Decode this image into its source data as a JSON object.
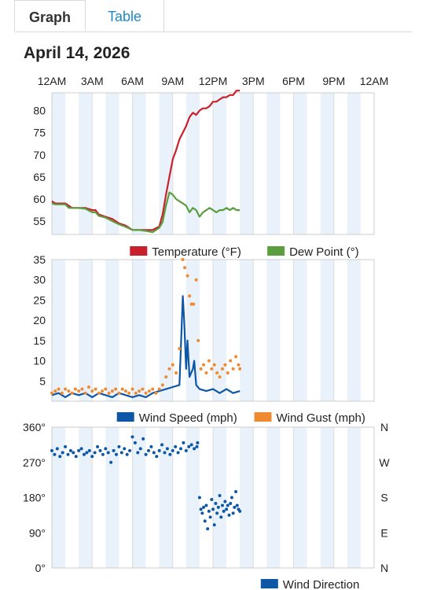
{
  "tabs": {
    "graph": "Graph",
    "table": "Table"
  },
  "date": "April 14, 2026",
  "time_axis": {
    "labels": [
      "12AM",
      "3AM",
      "6AM",
      "9AM",
      "12PM",
      "3PM",
      "6PM",
      "9PM",
      "12AM"
    ],
    "hour_range": [
      0,
      24
    ]
  },
  "colors": {
    "temperature": "#c8202c",
    "dew_point": "#5b9e3e",
    "wind_speed": "#0d57a6",
    "wind_gust": "#f08a30",
    "wind_direction": "#0d57a6",
    "band": "#e9f2fb",
    "grid": "#dddddd"
  },
  "chart_data": [
    {
      "type": "line",
      "ylim": [
        52,
        84
      ],
      "yticks": [
        55,
        60,
        65,
        70,
        75,
        80
      ],
      "series": [
        {
          "name": "Temperature (°F)",
          "key": "temperature",
          "x": [
            0,
            0.25,
            0.5,
            1,
            1.25,
            1.5,
            2,
            2.5,
            3,
            3.25,
            3.5,
            4,
            4.5,
            5,
            5.5,
            6,
            6.5,
            7,
            7.5,
            8,
            8.25,
            8.5,
            8.75,
            9,
            9.25,
            9.5,
            9.75,
            10,
            10.25,
            10.5,
            10.75,
            11,
            11.25,
            11.5,
            11.75,
            12,
            12.25,
            12.5,
            12.75,
            13,
            13.25,
            13.5,
            13.75,
            14
          ],
          "values": [
            59.5,
            59,
            59,
            59,
            58.5,
            58,
            58,
            58,
            57.5,
            57.5,
            56.5,
            56,
            55.5,
            54.5,
            54,
            53,
            53,
            53,
            53,
            53.8,
            56.5,
            61,
            65,
            69,
            71,
            73.5,
            75,
            76.5,
            78.5,
            79.5,
            79,
            80,
            80.5,
            80.5,
            81,
            82,
            82,
            82.5,
            83,
            83,
            83.5,
            83.5,
            84.5,
            84.5
          ]
        },
        {
          "name": "Dew Point (°)",
          "key": "dew_point",
          "x": [
            0,
            0.25,
            0.5,
            1,
            1.25,
            1.5,
            2,
            2.5,
            3,
            3.25,
            3.5,
            4,
            4.5,
            5,
            5.5,
            6,
            6.5,
            7,
            7.5,
            8,
            8.25,
            8.5,
            8.75,
            9,
            9.25,
            9.5,
            9.75,
            10,
            10.25,
            10.5,
            10.75,
            11,
            11.25,
            11.5,
            11.75,
            12,
            12.25,
            12.5,
            12.75,
            13,
            13.25,
            13.5,
            13.75,
            14
          ],
          "values": [
            59,
            58.8,
            58.8,
            58.8,
            58,
            58,
            58,
            57.8,
            57,
            57,
            56.2,
            55.8,
            55,
            54.3,
            53.7,
            53,
            53,
            52.8,
            52.5,
            53.5,
            54.8,
            58.5,
            61.5,
            61,
            60,
            59.5,
            59,
            58.5,
            57,
            58,
            57.5,
            56,
            57,
            57.5,
            58,
            57.5,
            57,
            57.5,
            57.5,
            58,
            57.5,
            58,
            57.5,
            57.5
          ]
        }
      ]
    },
    {
      "type": "line",
      "ylim": [
        0,
        35
      ],
      "yticks": [
        5,
        10,
        15,
        20,
        25,
        30,
        35
      ],
      "series": [
        {
          "name": "Wind Speed (mph)",
          "key": "wind_speed",
          "x": [
            0,
            0.5,
            1,
            1.5,
            2,
            2.5,
            3,
            3.5,
            4,
            4.5,
            5,
            5.5,
            6,
            6.5,
            7,
            7.5,
            8,
            8.5,
            9,
            9.5,
            9.75,
            9.85,
            10,
            10.1,
            10.25,
            10.5,
            10.6,
            10.75,
            11,
            11.5,
            12,
            12.5,
            13,
            13.5,
            14
          ],
          "values": [
            1.5,
            2,
            1,
            2,
            1.5,
            2,
            1,
            2,
            1.5,
            1,
            2,
            1.5,
            1,
            1.5,
            1,
            2,
            2.5,
            3,
            3.5,
            4,
            26,
            20,
            8,
            15,
            6,
            8,
            10,
            4,
            3,
            2.5,
            3,
            2,
            3,
            2,
            2.5
          ]
        },
        {
          "name": "Wind Gust (mph)",
          "type": "scatter",
          "key": "wind_gust",
          "x": [
            0,
            0.25,
            0.5,
            0.75,
            1,
            1.25,
            1.5,
            1.75,
            2,
            2.25,
            2.5,
            2.75,
            3,
            3.25,
            3.5,
            3.75,
            4,
            4.25,
            4.5,
            4.75,
            5,
            5.25,
            5.5,
            5.75,
            6,
            6.25,
            6.5,
            6.75,
            7,
            7.25,
            7.5,
            7.75,
            8,
            8.25,
            8.5,
            8.75,
            9,
            9.25,
            9.5,
            9.75,
            9.9,
            10.1,
            10.25,
            10.4,
            10.55,
            10.75,
            10.9,
            11.1,
            11.3,
            11.5,
            11.7,
            11.9,
            12.1,
            12.3,
            12.5,
            12.7,
            12.9,
            13.1,
            13.3,
            13.5,
            13.7,
            13.9,
            14
          ],
          "values": [
            2,
            2.5,
            3,
            2,
            3,
            2.5,
            2,
            3,
            2.5,
            3,
            2,
            3.5,
            2.5,
            3,
            2,
            2.5,
            3,
            2,
            2.5,
            3,
            2,
            3,
            2.5,
            2,
            3,
            2,
            2.5,
            3,
            2,
            2.5,
            3,
            2,
            3,
            4,
            6,
            8,
            9,
            7,
            13,
            35,
            33,
            31,
            26,
            24,
            24,
            30,
            15,
            8,
            9,
            7,
            10,
            8,
            9,
            7,
            6,
            8,
            9,
            7,
            10,
            8,
            11,
            9,
            8
          ]
        }
      ]
    },
    {
      "type": "scatter",
      "ylim": [
        0,
        360
      ],
      "yticks": [
        0,
        90,
        180,
        270,
        360
      ],
      "ytick_labels": [
        "0°",
        "90°",
        "180°",
        "270°",
        "360°"
      ],
      "right_labels": [
        "N",
        "E",
        "S",
        "W",
        "N"
      ],
      "series": [
        {
          "name": "Wind Direction",
          "key": "wind_direction",
          "x": [
            0,
            0.2,
            0.4,
            0.6,
            0.8,
            1,
            1.2,
            1.4,
            1.6,
            1.8,
            2,
            2.2,
            2.4,
            2.6,
            2.8,
            3,
            3.2,
            3.4,
            3.6,
            3.8,
            4,
            4.2,
            4.4,
            4.6,
            4.8,
            5,
            5.2,
            5.4,
            5.6,
            5.8,
            6,
            6.2,
            6.4,
            6.6,
            6.8,
            7,
            7.2,
            7.4,
            7.6,
            7.8,
            8,
            8.2,
            8.4,
            8.6,
            8.8,
            9,
            9.2,
            9.4,
            9.6,
            9.8,
            10,
            10.2,
            10.4,
            10.6,
            10.8,
            10.85,
            11,
            11.1,
            11.2,
            11.3,
            11.4,
            11.5,
            11.6,
            11.7,
            11.8,
            11.9,
            12,
            12.1,
            12.2,
            12.3,
            12.4,
            12.5,
            12.6,
            12.7,
            12.8,
            12.9,
            13,
            13.1,
            13.2,
            13.3,
            13.4,
            13.5,
            13.6,
            13.7,
            13.8,
            13.9,
            14
          ],
          "values": [
            300,
            290,
            305,
            285,
            295,
            310,
            290,
            300,
            295,
            285,
            300,
            305,
            290,
            295,
            300,
            285,
            295,
            310,
            300,
            290,
            305,
            295,
            270,
            300,
            290,
            310,
            295,
            305,
            290,
            300,
            335,
            320,
            295,
            305,
            330,
            290,
            300,
            310,
            295,
            285,
            300,
            315,
            295,
            305,
            290,
            300,
            310,
            295,
            305,
            320,
            300,
            310,
            315,
            305,
            310,
            320,
            180,
            150,
            140,
            155,
            120,
            160,
            100,
            145,
            130,
            175,
            150,
            110,
            165,
            140,
            155,
            185,
            130,
            160,
            145,
            170,
            150,
            160,
            135,
            165,
            180,
            140,
            155,
            195,
            160,
            150,
            145
          ]
        }
      ]
    }
  ]
}
